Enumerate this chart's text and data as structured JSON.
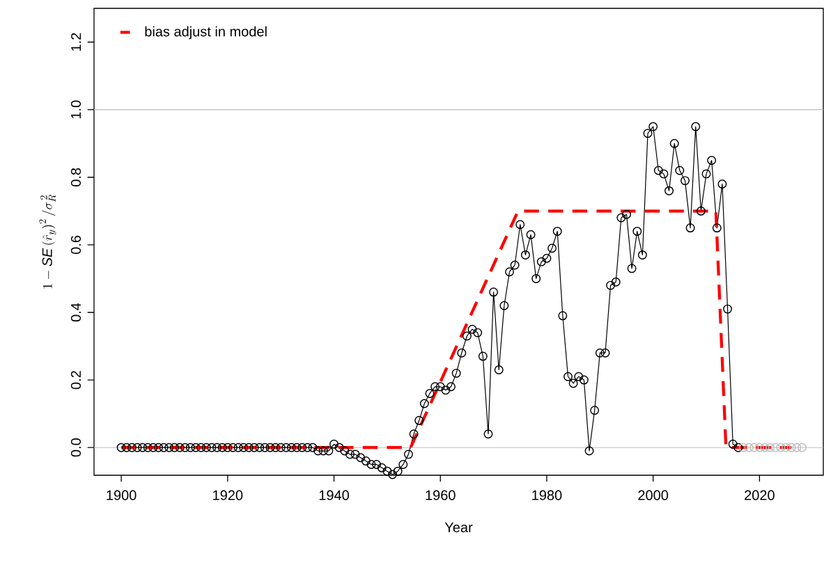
{
  "chart_data": {
    "type": "line",
    "xlabel": "Year",
    "ylabel": "1-\\mathit{SE}\\left(\\hat{r}_y\\right)^2/\\sigma_R^{\\,2}",
    "xlim": [
      1894.88,
      2032
    ],
    "ylim": [
      -0.082,
      1.3
    ],
    "xticks": [
      1900,
      1920,
      1940,
      1960,
      1980,
      2000,
      2020
    ],
    "yticks": [
      {
        "value": 0,
        "label": "0.0"
      },
      {
        "value": 0.2,
        "label": "0.2"
      },
      {
        "value": 0.4,
        "label": "0.4"
      },
      {
        "value": 0.6,
        "label": "0.6"
      },
      {
        "value": 0.8,
        "label": "0.8"
      },
      {
        "value": 1.0,
        "label": "1.0"
      },
      {
        "value": 1.2,
        "label": "1.2"
      }
    ],
    "legend": "top left",
    "grid": false,
    "ref_lines": [
      {
        "axis": "y",
        "value": 0,
        "color": "#bebebe"
      },
      {
        "axis": "y",
        "value": 1,
        "color": "#bebebe"
      }
    ],
    "series": [
      {
        "color": "#000000",
        "marker": "circle",
        "x": [
          1900,
          1901,
          1902,
          1903,
          1904,
          1905,
          1906,
          1907,
          1908,
          1909,
          1910,
          1911,
          1912,
          1913,
          1914,
          1915,
          1916,
          1917,
          1918,
          1919,
          1920,
          1921,
          1922,
          1923,
          1924,
          1925,
          1926,
          1927,
          1928,
          1929,
          1930,
          1931,
          1932,
          1933,
          1934,
          1935,
          1936,
          1937,
          1938,
          1939,
          1940,
          1941,
          1942,
          1943,
          1944,
          1945,
          1946,
          1947,
          1948,
          1949,
          1950,
          1951,
          1952,
          1953,
          1954,
          1955,
          1956,
          1957,
          1958,
          1959,
          1960,
          1961,
          1962,
          1963,
          1964,
          1965,
          1966,
          1967,
          1968,
          1969,
          1970,
          1971,
          1972,
          1973,
          1974,
          1975,
          1976,
          1977,
          1978,
          1979,
          1980,
          1981,
          1982,
          1983,
          1984,
          1985,
          1986,
          1987,
          1988,
          1989,
          1990,
          1991,
          1992,
          1993,
          1994,
          1995,
          1996,
          1997,
          1998,
          1999,
          2000,
          2001,
          2002,
          2003,
          2004,
          2005,
          2006,
          2007,
          2008,
          2009,
          2010,
          2011,
          2012,
          2013,
          2014,
          2015,
          2016
        ],
        "values": [
          0,
          0,
          0,
          0,
          0,
          0,
          0,
          0,
          0,
          0,
          0,
          0,
          0,
          0,
          0,
          0,
          0,
          0,
          0,
          0,
          0,
          0,
          0,
          0,
          0,
          0,
          0,
          0,
          0,
          0,
          0,
          0,
          0,
          0,
          0,
          0,
          0,
          -0.01,
          -0.01,
          -0.01,
          0.01,
          0,
          -0.01,
          -0.02,
          -0.02,
          -0.03,
          -0.04,
          -0.05,
          -0.05,
          -0.06,
          -0.07,
          -0.08,
          -0.07,
          -0.05,
          -0.02,
          0.04,
          0.08,
          0.13,
          0.16,
          0.18,
          0.18,
          0.17,
          0.18,
          0.22,
          0.28,
          0.33,
          0.35,
          0.34,
          0.27,
          0.04,
          0.46,
          0.23,
          0.42,
          0.52,
          0.54,
          0.66,
          0.57,
          0.63,
          0.5,
          0.55,
          0.56,
          0.59,
          0.64,
          0.39,
          0.21,
          0.19,
          0.21,
          0.2,
          -0.01,
          0.11,
          0.28,
          0.28,
          0.48,
          0.49,
          0.68,
          0.69,
          0.53,
          0.64,
          0.57,
          0.93,
          0.95,
          0.82,
          0.81,
          0.76,
          0.9,
          0.82,
          0.79,
          0.65,
          0.95,
          0.7,
          0.81,
          0.85,
          0.65,
          0.78,
          0.41,
          0.01,
          0
        ]
      },
      {
        "type": "scatter",
        "color": "#bebebe",
        "marker": "circle",
        "x": [
          2017,
          2018,
          2019,
          2020,
          2021,
          2022,
          2023,
          2024,
          2025,
          2026,
          2027,
          2028
        ],
        "values": [
          0,
          0,
          0,
          0,
          0,
          0,
          0,
          0,
          0,
          0,
          0,
          0
        ]
      },
      {
        "name": "bias adjust in model",
        "color": "#ff0000",
        "marker": "none",
        "line_style": "dashed",
        "x": [
          1900,
          1954.4,
          1974.6,
          2011.8,
          2013.7,
          2026
        ],
        "values": [
          0,
          0,
          0.7,
          0.7,
          0,
          0
        ]
      }
    ]
  }
}
